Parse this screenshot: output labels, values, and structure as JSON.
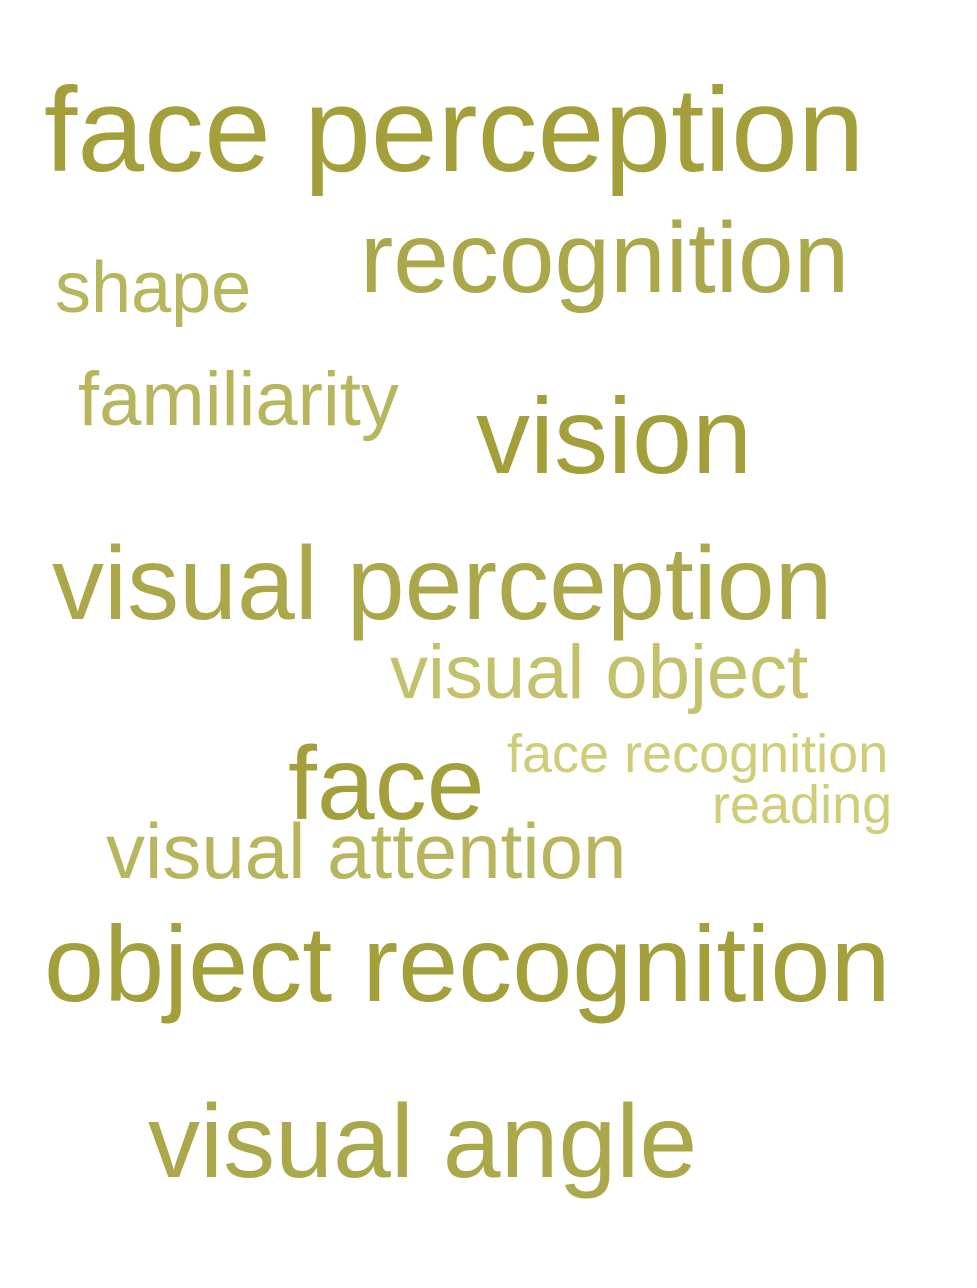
{
  "words": [
    {
      "text": "face perception",
      "rank": 1
    },
    {
      "text": "recognition",
      "rank": 2
    },
    {
      "text": "shape",
      "rank": 3
    },
    {
      "text": "familiarity",
      "rank": 3
    },
    {
      "text": "vision",
      "rank": 1
    },
    {
      "text": "visual perception",
      "rank": 2
    },
    {
      "text": "visual object",
      "rank": 4
    },
    {
      "text": "face recognition",
      "rank": 5
    },
    {
      "text": "face",
      "rank": 1
    },
    {
      "text": "reading",
      "rank": 5
    },
    {
      "text": "visual attention",
      "rank": 3
    },
    {
      "text": "object recognition",
      "rank": 1
    },
    {
      "text": "visual angle",
      "rank": 2
    }
  ],
  "colors": {
    "tone_1": "#a3a03c",
    "tone_2": "#aaa84a",
    "tone_3": "#b7b55d",
    "tone_4": "#c3c16b",
    "tone_5": "#cfcd78",
    "background": "#ffffff"
  }
}
